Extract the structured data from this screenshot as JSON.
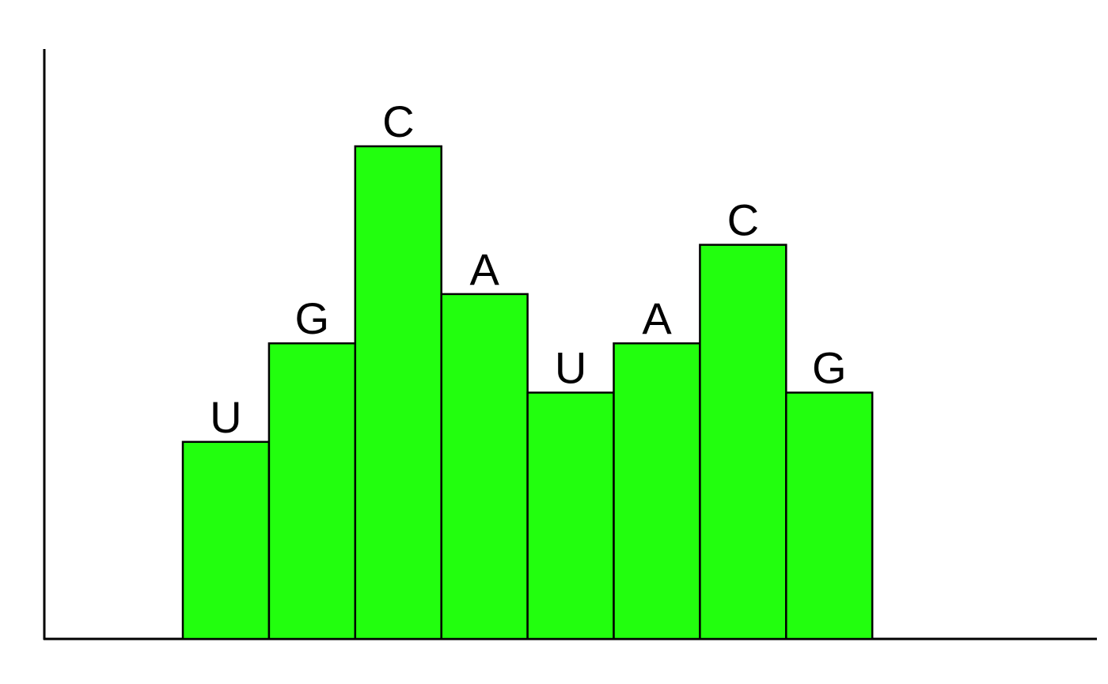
{
  "chart_data": {
    "type": "bar",
    "categories": [
      "U",
      "G",
      "C",
      "A",
      "U",
      "A",
      "C",
      "G"
    ],
    "values": [
      4,
      6,
      10,
      7,
      5,
      6,
      8,
      5
    ],
    "ylim": [
      0,
      12
    ],
    "grid": false,
    "bar_color": "#22ff0e",
    "title": "",
    "xlabel": "",
    "ylabel": ""
  }
}
